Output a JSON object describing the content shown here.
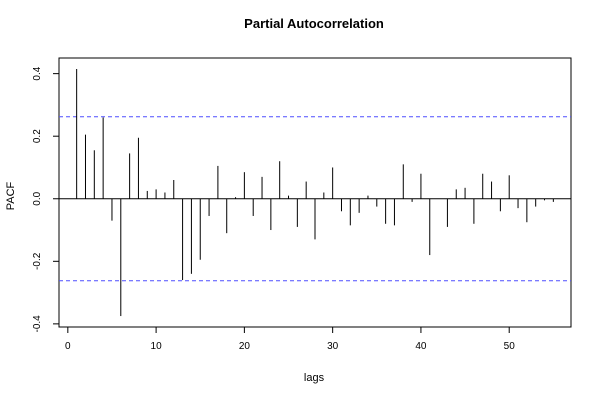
{
  "chart_data": {
    "type": "bar",
    "title": "Partial Autocorrelation",
    "xlabel": "lags",
    "ylabel": "PACF",
    "xlim": [
      -1,
      57
    ],
    "ylim": [
      -0.41,
      0.45
    ],
    "x_ticks": [
      0,
      10,
      20,
      30,
      40,
      50
    ],
    "y_ticks": [
      -0.4,
      -0.2,
      0.0,
      0.2,
      0.4
    ],
    "y_tick_labels": [
      "-0.4",
      "-0.2",
      "0.0",
      "0.2",
      "0.4"
    ],
    "x_tick_labels": [
      "0",
      "10",
      "20",
      "30",
      "40",
      "50"
    ],
    "confidence_bounds": [
      0.262,
      -0.262
    ],
    "confidence_line_color": "#4f4fff",
    "bar_color": "#000000",
    "series": [
      {
        "lags": [
          1,
          2,
          3,
          4,
          5,
          6,
          7,
          8,
          9,
          10,
          11,
          12,
          13,
          14,
          15,
          16,
          17,
          18,
          19,
          20,
          21,
          22,
          23,
          24,
          25,
          26,
          27,
          28,
          29,
          30,
          31,
          32,
          33,
          34,
          35,
          36,
          37,
          38,
          39,
          40,
          41,
          42,
          43,
          44,
          45,
          46,
          47,
          48,
          49,
          50,
          51,
          52,
          53,
          54,
          55
        ],
        "values": [
          0.415,
          0.205,
          0.155,
          0.26,
          -0.07,
          -0.375,
          0.145,
          0.195,
          0.025,
          0.03,
          0.02,
          0.06,
          -0.26,
          -0.24,
          -0.195,
          -0.055,
          0.105,
          -0.11,
          0.005,
          0.085,
          -0.055,
          0.07,
          -0.1,
          0.12,
          0.01,
          -0.09,
          0.055,
          -0.13,
          0.02,
          0.1,
          -0.04,
          -0.085,
          -0.045,
          0.01,
          -0.025,
          -0.08,
          -0.085,
          0.11,
          -0.01,
          0.08,
          -0.18,
          0.0,
          -0.09,
          0.03,
          0.035,
          -0.08,
          0.08,
          0.055,
          -0.04,
          0.075,
          -0.03,
          -0.075,
          -0.025,
          -0.005,
          -0.01
        ]
      }
    ]
  }
}
